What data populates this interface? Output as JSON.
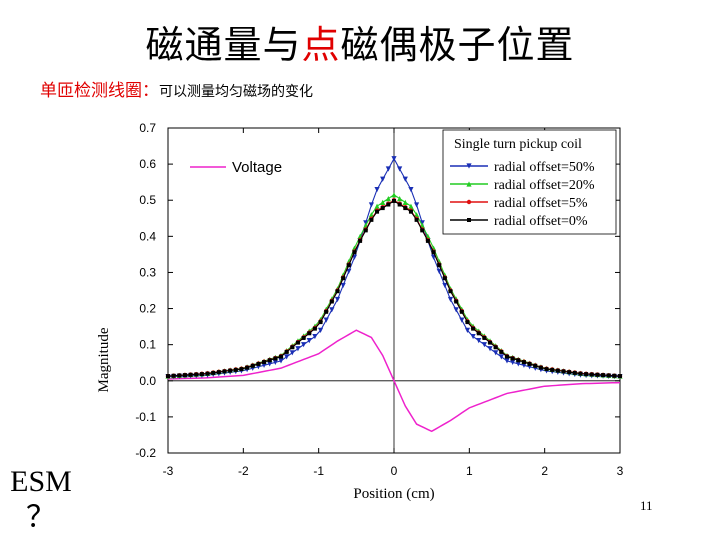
{
  "title": {
    "part1": "磁通量与",
    "highlight": "点",
    "part2": "磁偶极子位置"
  },
  "subtitle": {
    "red_text": "单匝检测线圈：",
    "black_text": "可以测量均匀磁场的变化"
  },
  "side_label": {
    "line1": "ESM",
    "line2": "？"
  },
  "page_number": "11",
  "colors": {
    "blue": "#1a2fb5",
    "green": "#22cc22",
    "red": "#e01010",
    "black": "#000000",
    "magenta": "#ee22cc",
    "title_red": "#e00000"
  },
  "chart_data": {
    "type": "line",
    "xlabel": "Position (cm)",
    "ylabel": "Magnitude",
    "xlim": [
      -3,
      3
    ],
    "ylim": [
      -0.2,
      0.7
    ],
    "xticks": [
      "-3",
      "-2",
      "-1",
      "0",
      "1",
      "2",
      "3"
    ],
    "yticks": [
      "0.7",
      "0.6",
      "0.5",
      "0.4",
      "0.3",
      "0.2",
      "0.1",
      "0.0",
      "-0.1",
      "-0.2"
    ],
    "legend_title": "Single turn pickup coil",
    "legend_position": "top-right",
    "x": [
      -3.0,
      -2.5,
      -2.0,
      -1.5,
      -1.0,
      -0.75,
      -0.5,
      -0.25,
      0.0,
      0.25,
      0.5,
      0.75,
      1.0,
      1.5,
      2.0,
      2.5,
      3.0
    ],
    "series": [
      {
        "name": "radial offset=50%",
        "color": "#1a2fb5",
        "marker": "triangle-down",
        "values": [
          0.011,
          0.015,
          0.028,
          0.055,
          0.13,
          0.225,
          0.355,
          0.52,
          0.615,
          0.52,
          0.355,
          0.225,
          0.13,
          0.055,
          0.028,
          0.015,
          0.011
        ]
      },
      {
        "name": "radial offset=20%",
        "color": "#22cc22",
        "marker": "triangle-up",
        "values": [
          0.013,
          0.02,
          0.035,
          0.07,
          0.16,
          0.255,
          0.38,
          0.48,
          0.515,
          0.48,
          0.38,
          0.255,
          0.16,
          0.07,
          0.035,
          0.02,
          0.013
        ]
      },
      {
        "name": "radial offset=5%",
        "color": "#e01010",
        "marker": "circle",
        "values": [
          0.013,
          0.02,
          0.034,
          0.068,
          0.155,
          0.25,
          0.37,
          0.468,
          0.5,
          0.468,
          0.37,
          0.25,
          0.155,
          0.068,
          0.034,
          0.02,
          0.013
        ]
      },
      {
        "name": "radial offset=0%",
        "color": "#000000",
        "marker": "square",
        "values": [
          0.013,
          0.019,
          0.033,
          0.067,
          0.153,
          0.248,
          0.368,
          0.465,
          0.498,
          0.465,
          0.368,
          0.248,
          0.153,
          0.067,
          0.033,
          0.019,
          0.013
        ]
      }
    ],
    "voltage": {
      "name": "Voltage",
      "color": "#ee22cc",
      "x": [
        -3.0,
        -2.5,
        -2.0,
        -1.5,
        -1.0,
        -0.75,
        -0.5,
        -0.3,
        -0.15,
        0.0,
        0.15,
        0.3,
        0.5,
        0.75,
        1.0,
        1.5,
        2.0,
        2.5,
        3.0
      ],
      "values": [
        0.005,
        0.008,
        0.015,
        0.035,
        0.075,
        0.11,
        0.14,
        0.12,
        0.07,
        0.0,
        -0.07,
        -0.12,
        -0.14,
        -0.11,
        -0.075,
        -0.035,
        -0.015,
        -0.008,
        -0.005
      ]
    }
  }
}
